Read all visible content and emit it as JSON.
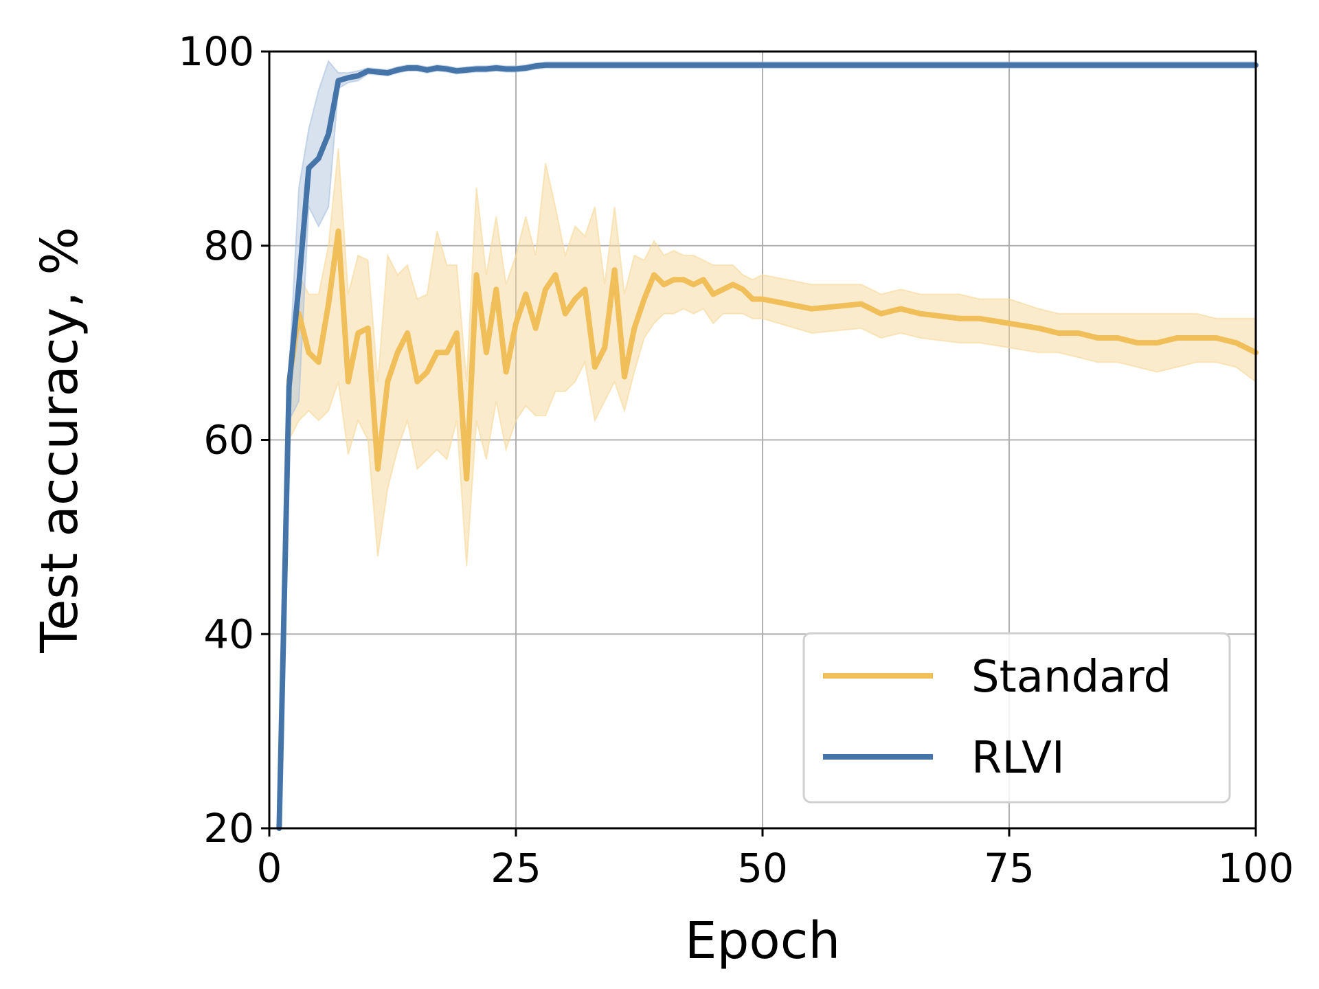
{
  "chart_data": {
    "type": "line",
    "xlabel": "Epoch",
    "ylabel": "Test accuracy, %",
    "xlim": [
      0,
      100
    ],
    "ylim": [
      20,
      100
    ],
    "xticks": [
      0,
      25,
      50,
      75,
      100
    ],
    "yticks": [
      20,
      40,
      60,
      80,
      100
    ],
    "xtick_labels": [
      "0",
      "25",
      "50",
      "75",
      "100"
    ],
    "ytick_labels": [
      "20",
      "40",
      "60",
      "80",
      "100"
    ],
    "grid": true,
    "legend": "lower-right",
    "series": [
      {
        "name": "Standard",
        "color": "#f0bf5a",
        "band_color": "#f5d89a",
        "x": [
          2,
          3,
          4,
          5,
          6,
          7,
          8,
          9,
          10,
          11,
          12,
          13,
          14,
          15,
          16,
          17,
          18,
          19,
          20,
          21,
          22,
          23,
          24,
          25,
          26,
          27,
          28,
          29,
          30,
          31,
          32,
          33,
          34,
          35,
          36,
          37,
          38,
          39,
          40,
          41,
          42,
          43,
          44,
          45,
          46,
          47,
          48,
          49,
          50,
          55,
          60,
          62,
          64,
          66,
          70,
          72,
          75,
          78,
          80,
          82,
          84,
          86,
          88,
          90,
          92,
          94,
          96,
          98,
          100
        ],
        "y": [
          66,
          73,
          69,
          68,
          74,
          81.5,
          66,
          71,
          71.5,
          57,
          66,
          69,
          71,
          66,
          67,
          69,
          69,
          71,
          56,
          77,
          69,
          75.5,
          67,
          72,
          75,
          71.5,
          75.5,
          77,
          73,
          74.5,
          75.5,
          67.5,
          69.5,
          77.5,
          66.5,
          71.5,
          74.5,
          77,
          76,
          76.5,
          76.5,
          76,
          76.5,
          75,
          75.5,
          76,
          75.5,
          74.5,
          74.5,
          73.5,
          74,
          73,
          73.5,
          73,
          72.5,
          72.5,
          72,
          71.5,
          71,
          71,
          70.5,
          70.5,
          70,
          70,
          70.5,
          70.5,
          70.5,
          70,
          69
        ],
        "upper": [
          68,
          77,
          75,
          75,
          80,
          90,
          75,
          79,
          78.5,
          66,
          79,
          77,
          78,
          74.5,
          75,
          81.5,
          78,
          78,
          66,
          86,
          77,
          83,
          76,
          79,
          83,
          79,
          88.5,
          84,
          79,
          82,
          81,
          84,
          76,
          84,
          75,
          79,
          78.5,
          80.5,
          79,
          79.5,
          79,
          79,
          78.5,
          78,
          78,
          78,
          77,
          76.5,
          77,
          76,
          76,
          75,
          75.5,
          75,
          75,
          74.5,
          74.5,
          73.5,
          73,
          73,
          73,
          73,
          73,
          73,
          73,
          73,
          72.5,
          72.5,
          72.5
        ],
        "lower": [
          60,
          62,
          63,
          62,
          63,
          66,
          58.5,
          62,
          60,
          48,
          55,
          59,
          62,
          57,
          58,
          59,
          58,
          62,
          47,
          62,
          58,
          64,
          59,
          62,
          63.5,
          62.5,
          62.5,
          65,
          65,
          66,
          68,
          62,
          64,
          66,
          63,
          67,
          70.5,
          72,
          73,
          73,
          73.5,
          73,
          73.5,
          72,
          73,
          73,
          73,
          72.5,
          72.5,
          71,
          71.5,
          70.5,
          71,
          70.5,
          70,
          70,
          69.5,
          69,
          69,
          68.5,
          68,
          68,
          67.5,
          67,
          67.5,
          68,
          68,
          67.5,
          66
        ]
      },
      {
        "name": "RLVI",
        "color": "#4574a8",
        "band_color": "#a8bfdc",
        "x": [
          1,
          2,
          3,
          4,
          5,
          6,
          7,
          8,
          9,
          10,
          11,
          12,
          13,
          14,
          15,
          16,
          17,
          18,
          19,
          20,
          21,
          22,
          23,
          24,
          25,
          26,
          27,
          28,
          29,
          30,
          35,
          40,
          50,
          60,
          70,
          80,
          90,
          100
        ],
        "y": [
          20,
          65.5,
          76,
          88,
          89,
          91.5,
          97,
          97.3,
          97.5,
          98,
          97.9,
          97.8,
          98.1,
          98.3,
          98.3,
          98.1,
          98.3,
          98.2,
          98,
          98.1,
          98.2,
          98.2,
          98.3,
          98.2,
          98.2,
          98.3,
          98.5,
          98.6,
          98.6,
          98.6,
          98.6,
          98.6,
          98.6,
          98.6,
          98.6,
          98.6,
          98.6,
          98.6
        ],
        "upper": [
          20,
          67,
          86,
          92,
          96,
          99,
          97.8,
          97.8,
          98,
          98.3,
          98.2,
          98.1,
          98.4,
          98.6,
          98.6,
          98.4,
          98.6,
          98.5,
          98.3,
          98.4,
          98.5,
          98.5,
          98.6,
          98.5,
          98.5,
          98.6,
          98.8,
          98.9,
          98.9,
          98.9,
          98.9,
          98.9,
          98.9,
          98.9,
          98.9,
          98.9,
          98.9,
          98.9
        ],
        "lower": [
          20,
          62,
          64,
          84,
          82,
          84,
          96.2,
          96.8,
          97,
          97.7,
          97.6,
          97.5,
          97.8,
          98,
          98,
          97.8,
          98,
          97.9,
          97.7,
          97.8,
          97.9,
          97.9,
          98,
          97.9,
          97.9,
          98,
          98.2,
          98.3,
          98.3,
          98.3,
          98.3,
          98.3,
          98.3,
          98.3,
          98.3,
          98.3,
          98.3,
          98.3
        ]
      }
    ]
  }
}
